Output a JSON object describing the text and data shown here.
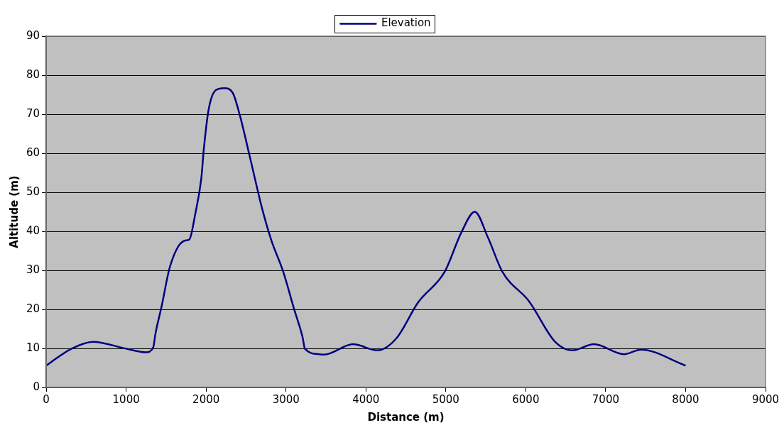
{
  "chart_data": {
    "type": "line",
    "xlabel": "Distance (m)",
    "ylabel": "Altitude (m)",
    "xlim": [
      0,
      9000
    ],
    "xticks": [
      0,
      1000,
      2000,
      3000,
      4000,
      5000,
      6000,
      7000,
      8000,
      9000
    ],
    "ylim": [
      0,
      90
    ],
    "yticks": [
      0,
      10,
      20,
      30,
      40,
      50,
      60,
      70,
      80,
      90
    ],
    "grid": "y",
    "legend": "top",
    "marker": "none",
    "line_style": "solid",
    "series": [
      {
        "name": "Elevation",
        "color": "#000080",
        "x": [
          0,
          313,
          585,
          1006,
          1248,
          1338,
          1368,
          1444,
          1549,
          1730,
          1790,
          1866,
          1941,
          1971,
          2031,
          2122,
          2227,
          2333,
          2423,
          2543,
          2709,
          2815,
          2966,
          3101,
          3207,
          3237,
          3418,
          3478,
          3840,
          4141,
          4382,
          4654,
          4985,
          5196,
          5362,
          5527,
          5708,
          6040,
          6371,
          6582,
          6853,
          7230,
          7441,
          8000
        ],
        "values": [
          5.6,
          9.9,
          11.7,
          9.9,
          9.0,
          10.2,
          13.9,
          20.8,
          31.0,
          37.6,
          37.9,
          44.6,
          53.7,
          60.9,
          71.1,
          76.2,
          76.7,
          75.5,
          69.7,
          59.5,
          45.2,
          37.8,
          29.6,
          20.1,
          12.9,
          9.9,
          8.5,
          8.4,
          11.1,
          9.5,
          12.6,
          21.8,
          29.6,
          39.8,
          45.0,
          38.4,
          29.6,
          22.1,
          11.6,
          9.5,
          11.1,
          8.5,
          9.7,
          5.6
        ]
      }
    ]
  }
}
